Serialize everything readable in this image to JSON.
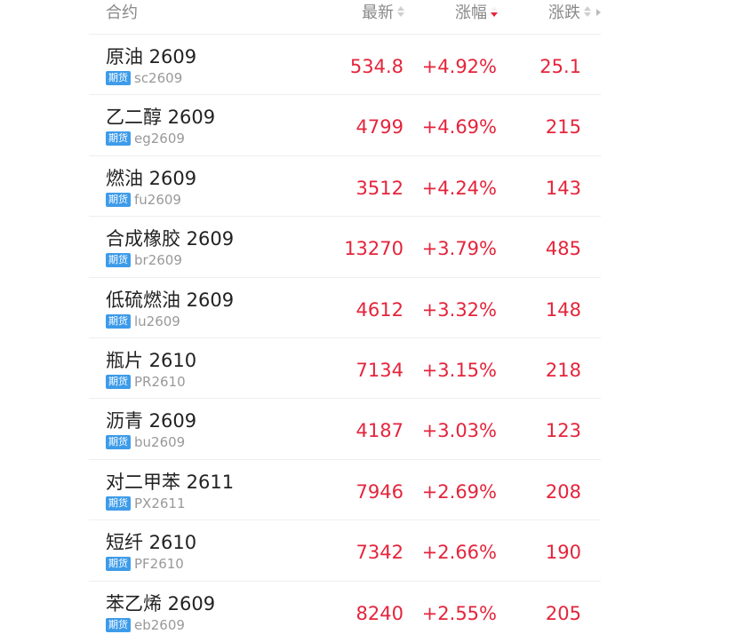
{
  "header": {
    "contract": "合约",
    "latest": "最新",
    "change_pct": "涨幅",
    "change": "涨跌"
  },
  "colors": {
    "up": "#e5243b",
    "tag_bg": "#3d9be9",
    "header_text": "#888888"
  },
  "rows": [
    {
      "name": "原油 2609",
      "tag": "期货",
      "code": "sc2609",
      "latest": "534.8",
      "change_pct": "+4.92%",
      "change": "25.1"
    },
    {
      "name": "乙二醇 2609",
      "tag": "期货",
      "code": "eg2609",
      "latest": "4799",
      "change_pct": "+4.69%",
      "change": "215"
    },
    {
      "name": "燃油 2609",
      "tag": "期货",
      "code": "fu2609",
      "latest": "3512",
      "change_pct": "+4.24%",
      "change": "143"
    },
    {
      "name": "合成橡胶 2609",
      "tag": "期货",
      "code": "br2609",
      "latest": "13270",
      "change_pct": "+3.79%",
      "change": "485"
    },
    {
      "name": "低硫燃油 2609",
      "tag": "期货",
      "code": "lu2609",
      "latest": "4612",
      "change_pct": "+3.32%",
      "change": "148"
    },
    {
      "name": "瓶片 2610",
      "tag": "期货",
      "code": "PR2610",
      "latest": "7134",
      "change_pct": "+3.15%",
      "change": "218"
    },
    {
      "name": "沥青 2609",
      "tag": "期货",
      "code": "bu2609",
      "latest": "4187",
      "change_pct": "+3.03%",
      "change": "123"
    },
    {
      "name": "对二甲苯 2611",
      "tag": "期货",
      "code": "PX2611",
      "latest": "7946",
      "change_pct": "+2.69%",
      "change": "208"
    },
    {
      "name": "短纤 2610",
      "tag": "期货",
      "code": "PF2610",
      "latest": "7342",
      "change_pct": "+2.66%",
      "change": "190"
    },
    {
      "name": "苯乙烯 2609",
      "tag": "期货",
      "code": "eb2609",
      "latest": "8240",
      "change_pct": "+2.55%",
      "change": "205"
    }
  ]
}
